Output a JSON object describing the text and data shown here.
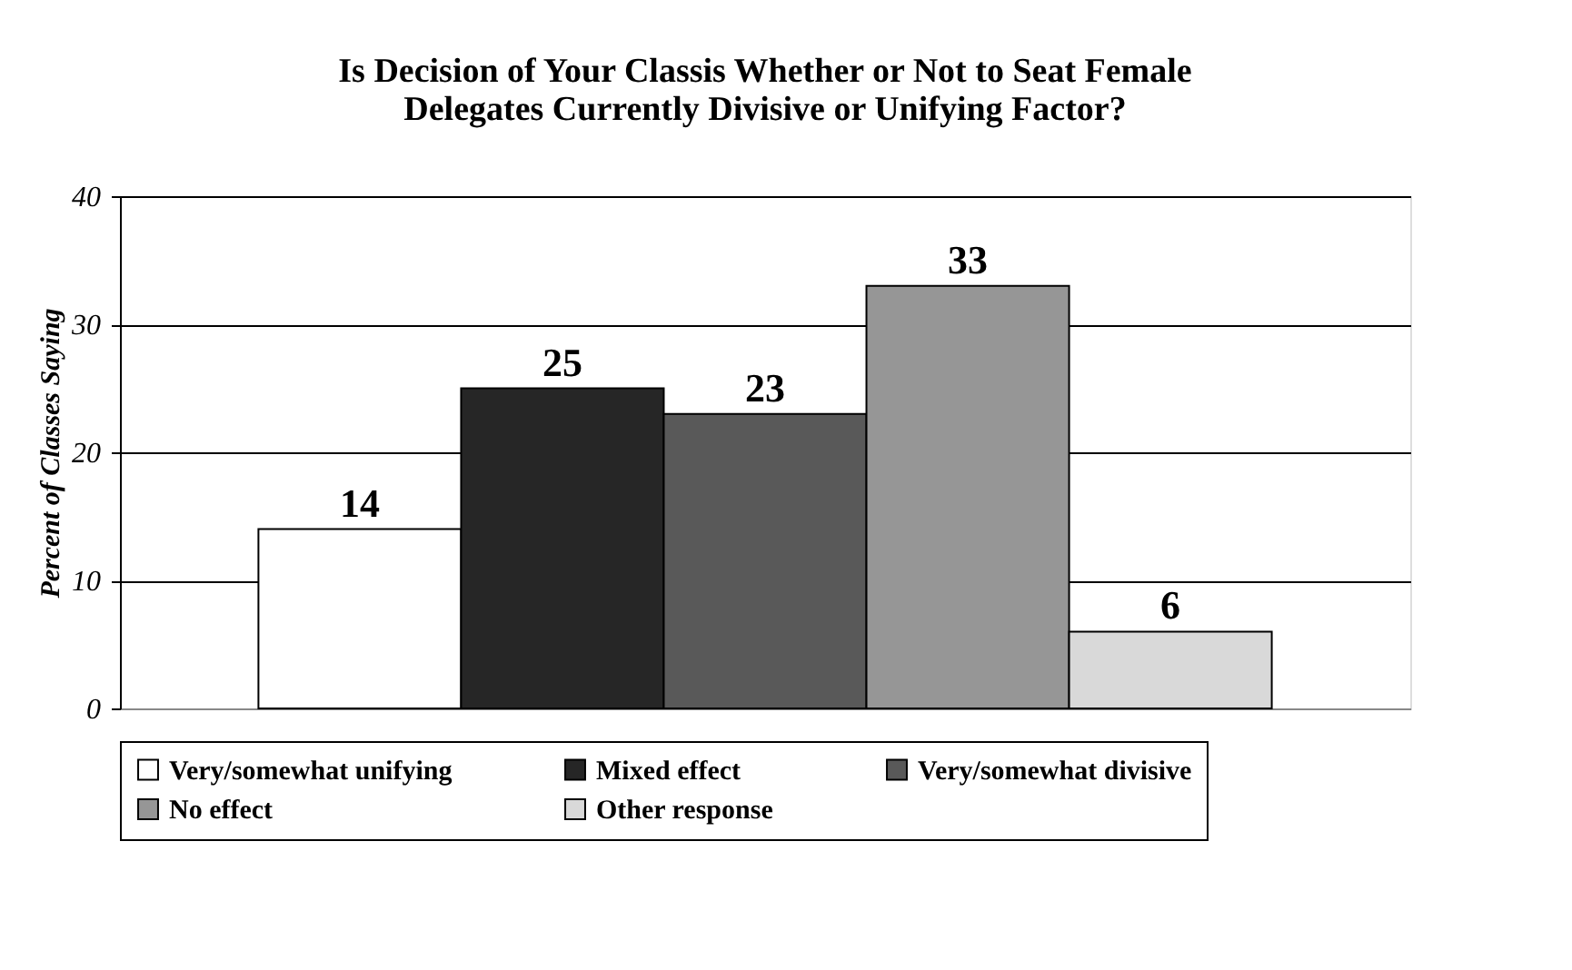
{
  "chart_data": {
    "type": "bar",
    "title": "Is Decision of Your Classis Whether or Not to Seat Female\nDelegates Currently Divisive or Unifying Factor?",
    "ylabel": "Percent of Classes Saying",
    "categories": [
      null
    ],
    "series": [
      {
        "name": "Very/somewhat unifying",
        "color": "#ffffff",
        "values": [
          14
        ]
      },
      {
        "name": "Mixed effect",
        "color": "#262626",
        "values": [
          25
        ]
      },
      {
        "name": "Very/somewhat divisive",
        "color": "#595959",
        "values": [
          23
        ]
      },
      {
        "name": "No effect",
        "color": "#969696",
        "values": [
          33
        ]
      },
      {
        "name": "Other response",
        "color": "#d9d9d9",
        "values": [
          6
        ]
      }
    ],
    "ylim": [
      0,
      40
    ],
    "yticks": [
      0,
      10,
      20,
      30,
      40
    ],
    "grid": "y",
    "legend": "bottom",
    "data_labels": true
  }
}
